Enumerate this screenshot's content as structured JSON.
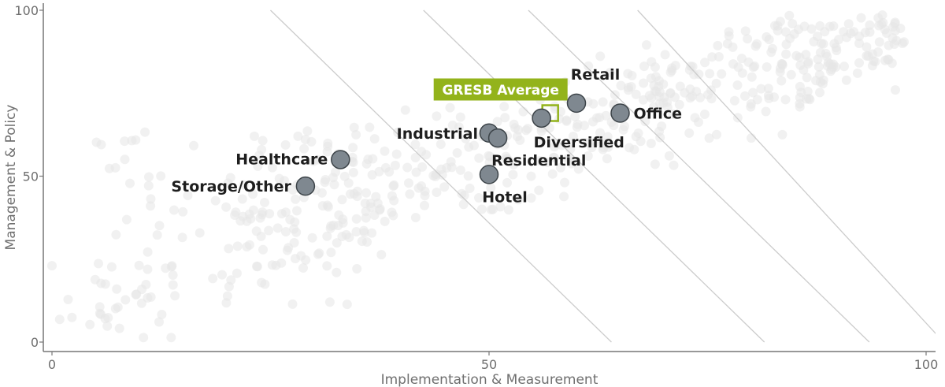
{
  "chart_data": {
    "type": "scatter",
    "xlabel": "Implementation & Measurement",
    "ylabel": "Management & Policy",
    "xlim": [
      0,
      100
    ],
    "ylim": [
      0,
      100
    ],
    "xticks": [
      0,
      50,
      100
    ],
    "yticks": [
      0,
      50,
      100
    ],
    "grid": false,
    "colors": {
      "highlight": "#7f8890",
      "highlight_stroke": "#3d4449",
      "background_points": "#e6e6e6",
      "average": "#93b31b",
      "iso_lines": "#cccccc",
      "axis": "#777777"
    },
    "iso_lines": [
      {
        "x_at_top": 25,
        "x_at_bottom": 64
      },
      {
        "x_at_top": 42.5,
        "x_at_bottom": 81.5
      },
      {
        "x_at_top": 54.5,
        "x_at_bottom": 93.5
      },
      {
        "x_at_top": 67,
        "x_at_bottom": 102
      }
    ],
    "highlights": [
      {
        "name": "Retail",
        "x": 60,
        "y": 72
      },
      {
        "name": "Office",
        "x": 65,
        "y": 69
      },
      {
        "name": "Diversified",
        "x": 56,
        "y": 67.5
      },
      {
        "name": "Industrial",
        "x": 50,
        "y": 63
      },
      {
        "name": "Residential",
        "x": 51,
        "y": 61.5
      },
      {
        "name": "Hotel",
        "x": 50,
        "y": 50.5
      },
      {
        "name": "Healthcare",
        "x": 33,
        "y": 55
      },
      {
        "name": "Storage/Other",
        "x": 29,
        "y": 47
      }
    ],
    "average": {
      "name": "GRESB Average",
      "x": 57,
      "y": 69
    }
  }
}
